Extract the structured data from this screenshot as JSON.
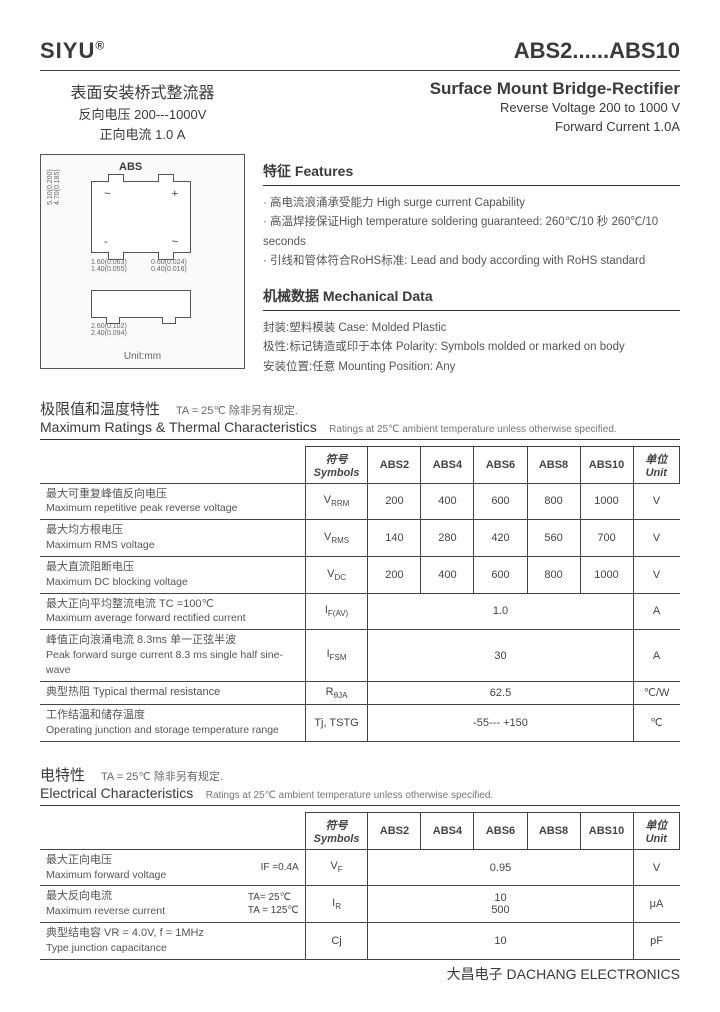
{
  "brand": "SIYU",
  "partno": "ABS2......ABS10",
  "header": {
    "cn_title": "表面安装桥式整流器",
    "cn_line1": "反向电压 200---1000V",
    "cn_line2": "正向电流   1.0 A",
    "en_title": "Surface Mount Bridge-Rectifier",
    "en_line1": "Reverse Voltage 200 to 1000 V",
    "en_line2": "Forward Current   1.0A"
  },
  "pkg": {
    "label": "ABS",
    "unit": "Unit:mm"
  },
  "features": {
    "heading": "特征  Features",
    "items": [
      "高电流浪涌承受能力 High surge current Capability",
      "高温焊接保证High temperature soldering guaranteed: 260℃/10 秒  260℃/10 seconds",
      "引线和管体符合RoHS标准:  Lead and body according with RoHS standard"
    ]
  },
  "mech": {
    "heading": "机械数据  Mechanical Data",
    "items": [
      "封装:塑料模装   Case: Molded Plastic",
      "极性:标记铸造或印于本体  Polarity: Symbols molded or marked on body",
      "安装位置:任意   Mounting Position: Any"
    ]
  },
  "max_section": {
    "cn": "极限值和温度特性",
    "cond": "TA = 25℃   除非另有规定.",
    "en": "Maximum Ratings & Thermal Characteristics",
    "note": "Ratings at 25℃ ambient temperature unless otherwise specified."
  },
  "max_table": {
    "headers": {
      "symbol": "符号\nSymbols",
      "unit": "单位\nUnit",
      "cols": [
        "ABS2",
        "ABS4",
        "ABS6",
        "ABS8",
        "ABS10"
      ]
    },
    "rows": [
      {
        "cn": "最大可重复峰值反向电压",
        "en": "Maximum repetitive peak reverse voltage",
        "sym": "V",
        "sub": "RRM",
        "vals": [
          "200",
          "400",
          "600",
          "800",
          "1000"
        ],
        "unit": "V",
        "span": false
      },
      {
        "cn": "最大均方根电压",
        "en": "Maximum RMS voltage",
        "sym": "V",
        "sub": "RMS",
        "vals": [
          "140",
          "280",
          "420",
          "560",
          "700"
        ],
        "unit": "V",
        "span": false
      },
      {
        "cn": "最大直流阻断电压",
        "en": "Maximum DC blocking voltage",
        "sym": "V",
        "sub": "DC",
        "vals": [
          "200",
          "400",
          "600",
          "800",
          "1000"
        ],
        "unit": "V",
        "span": false
      },
      {
        "cn": "最大正向平均整流电流     TC =100℃",
        "en": "Maximum average forward rectified current",
        "sym": "I",
        "sub": "F(AV)",
        "vals": [
          "1.0"
        ],
        "unit": "A",
        "span": true
      },
      {
        "cn": "峰值正向浪涌电流 8.3ms 单一正弦半波",
        "en": "Peak forward surge current 8.3 ms single half sine-wave",
        "sym": "I",
        "sub": "FSM",
        "vals": [
          "30"
        ],
        "unit": "A",
        "span": true
      },
      {
        "cn": "典型热阻   Typical thermal resistance",
        "en": "",
        "sym": "R",
        "sub": "θJA",
        "vals": [
          "62.5"
        ],
        "unit": "℃/W",
        "span": true
      },
      {
        "cn": "工作结温和储存温度",
        "en": "Operating junction and storage temperature range",
        "sym": "Tj, TSTG",
        "sub": "",
        "vals": [
          "-55--- +150"
        ],
        "unit": "℃",
        "span": true
      }
    ]
  },
  "elec_section": {
    "cn": "电特性",
    "cond": "TA = 25℃  除非另有规定.",
    "en": "Electrical Characteristics",
    "note": "Ratings at 25℃ ambient temperature unless otherwise specified."
  },
  "elec_table": {
    "headers": {
      "symbol": "符号\nSymbols",
      "unit": "单位\nUnit",
      "cols": [
        "ABS2",
        "ABS4",
        "ABS6",
        "ABS8",
        "ABS10"
      ]
    },
    "rows": [
      {
        "cn": "最大正向电压",
        "en": "Maximum forward voltage",
        "cond": "IF =0.4A",
        "sym": "V",
        "sub": "F",
        "vals": [
          "0.95"
        ],
        "unit": "V"
      },
      {
        "cn": "最大反向电流",
        "en": "Maximum reverse current",
        "cond": "TA= 25℃\nTA = 125℃",
        "sym": "I",
        "sub": "R",
        "vals": [
          "10\n500"
        ],
        "unit": "μA"
      },
      {
        "cn": "典型结电容   VR = 4.0V, f = 1MHz",
        "en": "Type junction capacitance",
        "cond": "",
        "sym": "Cj",
        "sub": "",
        "vals": [
          "10"
        ],
        "unit": "pF"
      }
    ]
  },
  "footer": "大昌电子  DACHANG ELECTRONICS"
}
